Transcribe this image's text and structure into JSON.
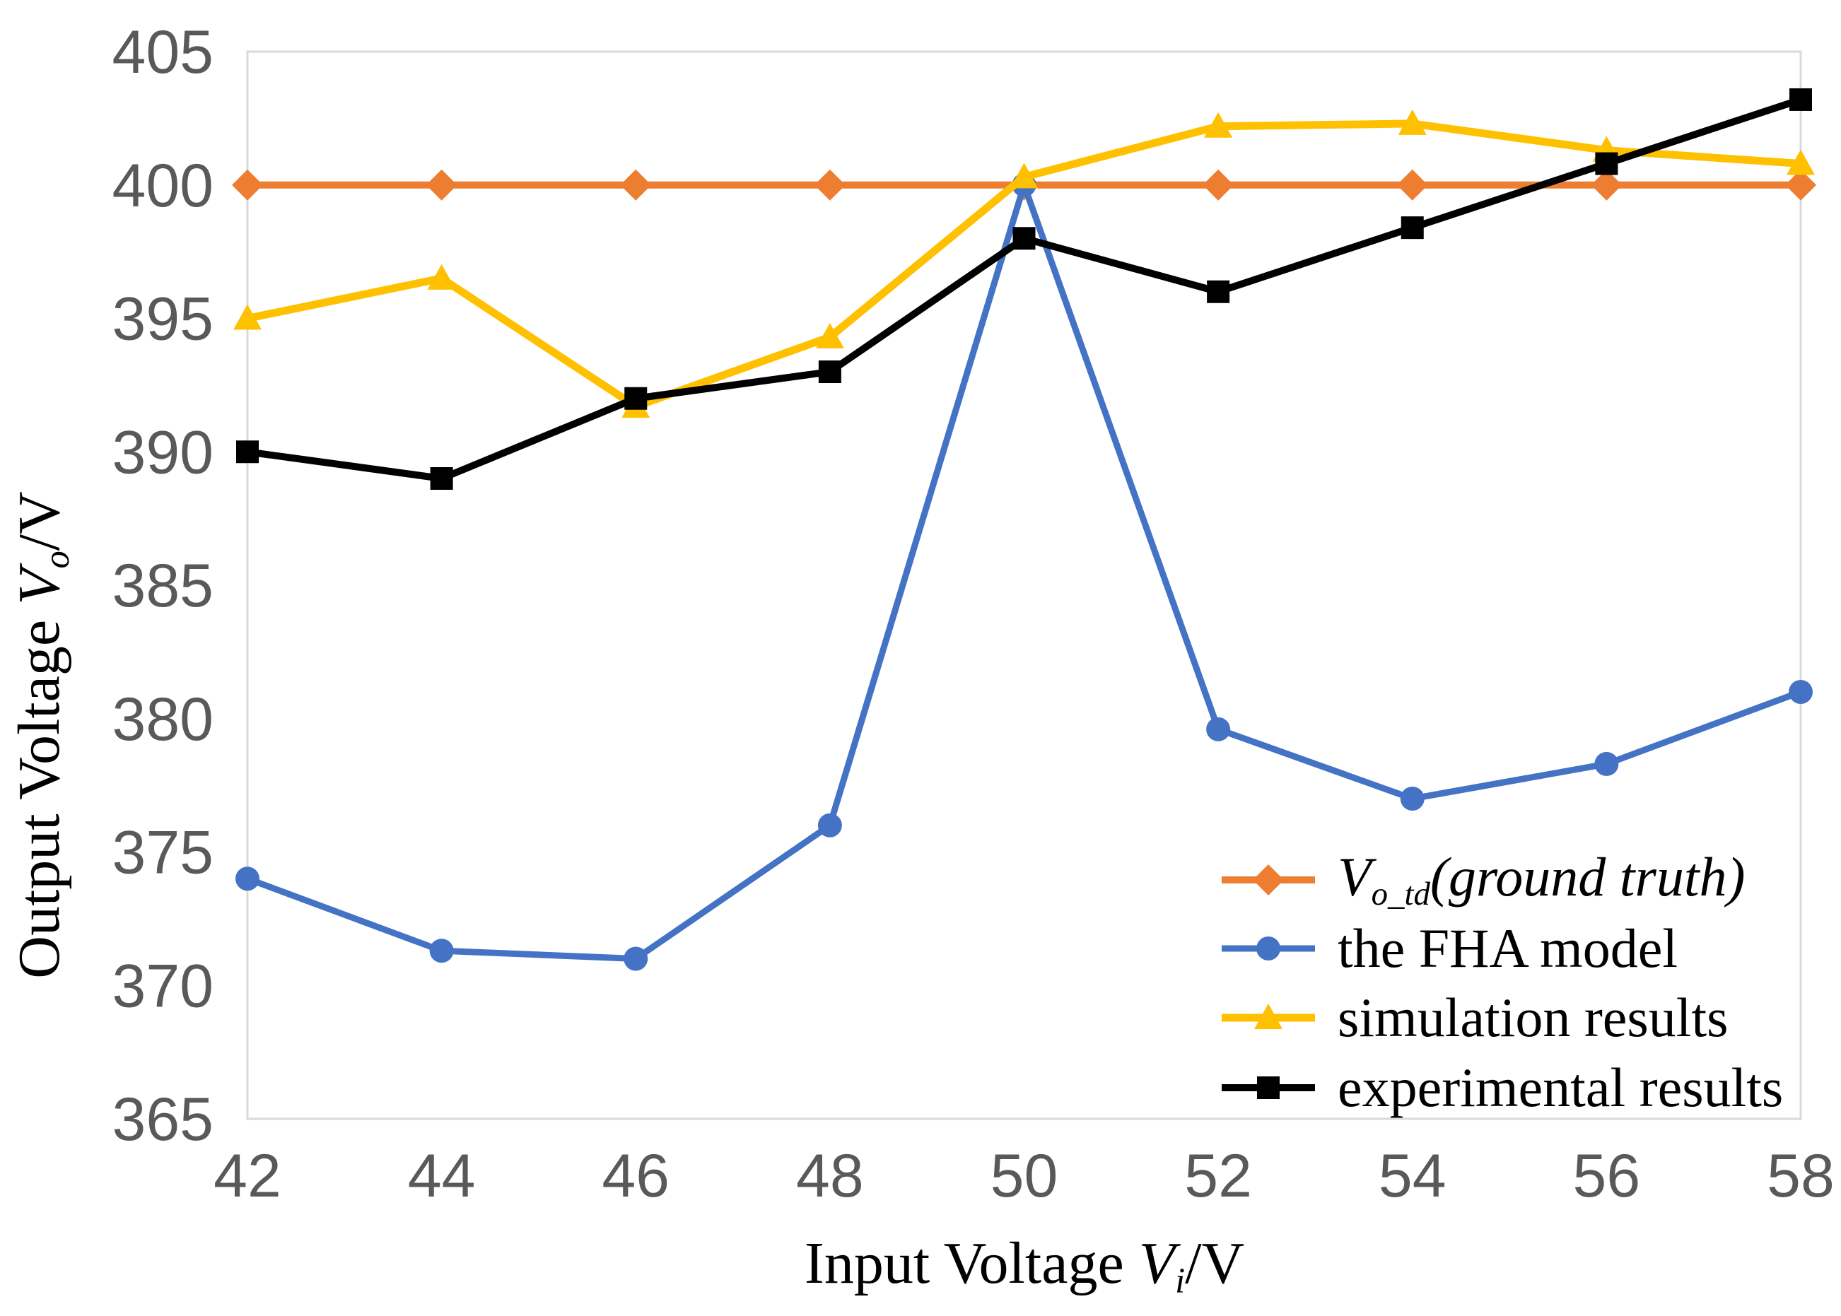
{
  "figure": {
    "background": "#ffffff",
    "plot_border_color": "#d9d9d9",
    "tick_label_color": "#595959",
    "y_axis": {
      "title_parts": [
        {
          "t": "Output Voltage ",
          "s": ""
        },
        {
          "t": "V",
          "s": "var"
        },
        {
          "t": "o",
          "s": "sub"
        },
        {
          "t": "/V",
          "s": ""
        }
      ],
      "tick_values": [
        365,
        370,
        375,
        380,
        385,
        390,
        395,
        400,
        405
      ],
      "tick_labels": [
        "365",
        "370",
        "375",
        "380",
        "385",
        "390",
        "395",
        "400",
        "405"
      ]
    },
    "x_axis": {
      "title_parts": [
        {
          "t": "Input Voltage ",
          "s": ""
        },
        {
          "t": "V",
          "s": "var"
        },
        {
          "t": "i",
          "s": "sub"
        },
        {
          "t": "/V",
          "s": ""
        }
      ],
      "tick_values": [
        42,
        44,
        46,
        48,
        50,
        52,
        54,
        56,
        58
      ],
      "tick_labels": [
        "42",
        "44",
        "46",
        "48",
        "50",
        "52",
        "54",
        "56",
        "58"
      ]
    }
  },
  "chart_data": {
    "type": "line",
    "title": "",
    "xlabel": "Input Voltage V_i/V",
    "ylabel": "Output Voltage V_o/V",
    "x": [
      42,
      44,
      46,
      48,
      50,
      52,
      54,
      56,
      58
    ],
    "xlim": [
      42,
      58
    ],
    "ylim": [
      365,
      405
    ],
    "grid": false,
    "legend_position": "inside-bottom-right",
    "series": [
      {
        "name": "V_o_td (ground truth)",
        "marker": "diamond",
        "color": "#ED7D31",
        "values": [
          400,
          400,
          400,
          400,
          400,
          400,
          400,
          400,
          400
        ],
        "legend_parts": [
          {
            "t": "V",
            "s": "var"
          },
          {
            "t": "o_td",
            "s": "sub"
          },
          {
            "t": "(ground truth)",
            "s": "it"
          }
        ]
      },
      {
        "name": "the FHA model",
        "marker": "circle",
        "color": "#4472C4",
        "values": [
          374,
          371.3,
          371,
          376,
          400,
          379.6,
          377,
          378.3,
          381
        ],
        "legend_parts": [
          {
            "t": "the FHA model",
            "s": ""
          }
        ]
      },
      {
        "name": "simulation results",
        "marker": "triangle",
        "color": "#FFC000",
        "values": [
          395,
          396.5,
          391.7,
          394.3,
          400.3,
          402.2,
          402.3,
          401.3,
          400.8
        ],
        "legend_parts": [
          {
            "t": "simulation results",
            "s": ""
          }
        ]
      },
      {
        "name": "experimental results",
        "marker": "square",
        "color": "#000000",
        "values": [
          390,
          389,
          392,
          393,
          398,
          396,
          398.4,
          400.8,
          403.2
        ],
        "legend_parts": [
          {
            "t": "experimental results",
            "s": ""
          }
        ]
      }
    ]
  }
}
